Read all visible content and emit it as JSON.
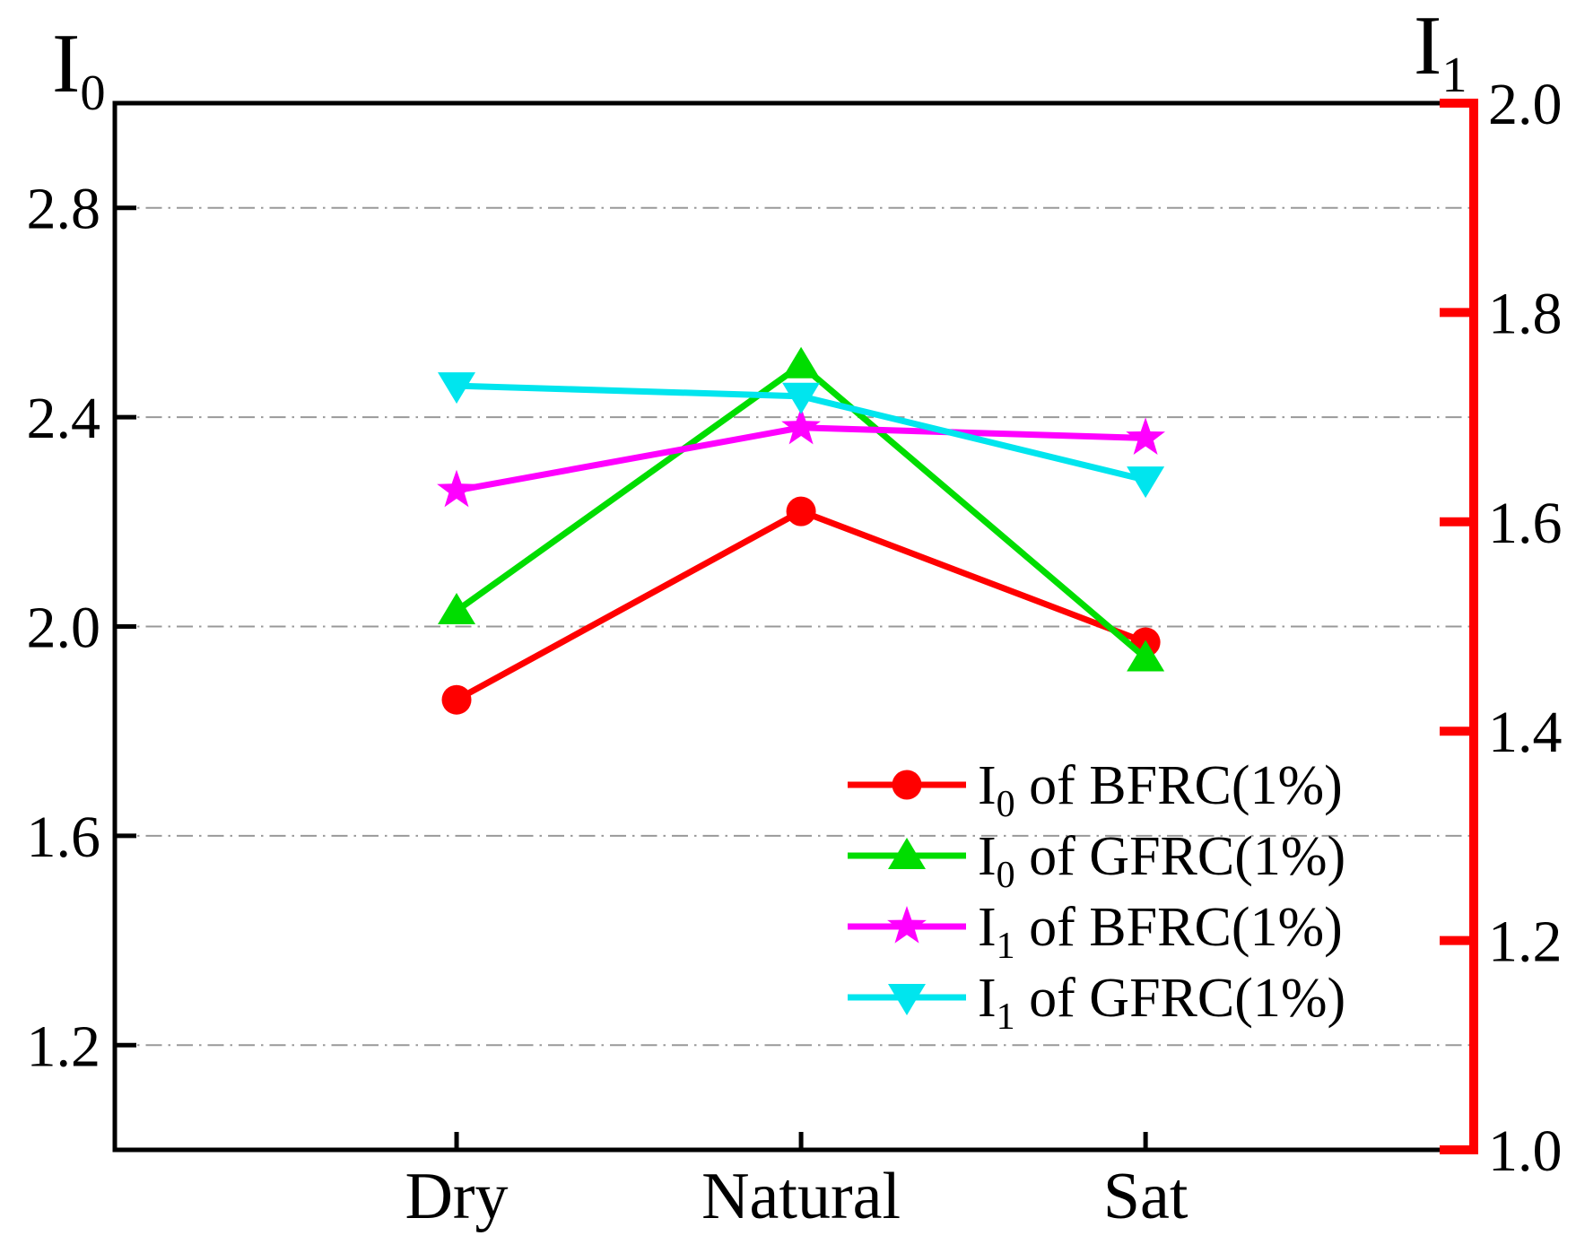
{
  "figure": {
    "left_axis_title": {
      "base": "I",
      "sub": "0"
    },
    "right_axis_title": {
      "base": "I",
      "sub": "1"
    }
  },
  "chart_data": {
    "type": "line",
    "categories": [
      "Dry",
      "Natural",
      "Sat"
    ],
    "series": [
      {
        "name": "I0 of BFRC(1%)",
        "label_base": "I",
        "label_sub": "0",
        "label_rest": " of BFRC(1%)",
        "axis": "left",
        "color": "#FF0000",
        "marker": "circle",
        "values": [
          1.86,
          2.22,
          1.97
        ]
      },
      {
        "name": "I0 of GFRC(1%)",
        "label_base": "I",
        "label_sub": "0",
        "label_rest": " of GFRC(1%)",
        "axis": "left",
        "color": "#00DD00",
        "marker": "triangle-up",
        "values": [
          2.03,
          2.5,
          1.94
        ]
      },
      {
        "name": "I1 of BFRC(1%)",
        "label_base": "I",
        "label_sub": "1",
        "label_rest": " of BFRC(1%)",
        "axis": "right",
        "color": "#FF00FF",
        "marker": "star",
        "values": [
          1.63,
          1.69,
          1.68
        ]
      },
      {
        "name": "I1 of GFRC(1%)",
        "label_base": "I",
        "label_sub": "1",
        "label_rest": " of GFRC(1%)",
        "axis": "right",
        "color": "#00E5EE",
        "marker": "triangle-down",
        "values": [
          1.73,
          1.72,
          1.64
        ]
      }
    ],
    "left_axis": {
      "label": "I0",
      "min": 1.0,
      "max": 3.0,
      "tick_values": [
        2.8,
        2.4,
        2.0,
        1.6,
        1.2
      ],
      "tick_labels": [
        "2.8",
        "2.4",
        "2.0",
        "1.6",
        "1.2"
      ],
      "color": "#000000"
    },
    "right_axis": {
      "label": "I1",
      "min": 1.0,
      "max": 2.0,
      "tick_values": [
        2.0,
        1.8,
        1.6,
        1.4,
        1.2,
        1.0
      ],
      "tick_labels": [
        "2.0",
        "1.8",
        "1.6",
        "1.4",
        "1.2",
        "1.0"
      ],
      "color": "#FF0000"
    },
    "grid": {
      "show": true,
      "color": "#999999",
      "style": "dash-dot",
      "on_left_ticks": true
    },
    "legend": {
      "position": "inside-lower-right"
    }
  }
}
